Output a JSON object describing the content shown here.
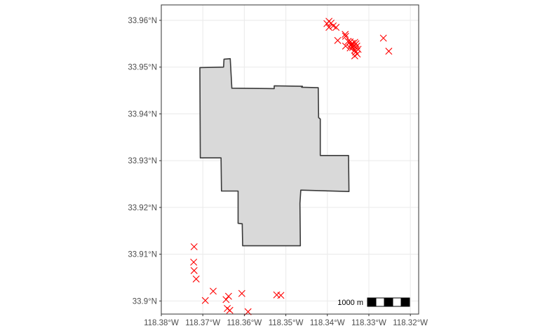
{
  "map": {
    "lon_range": [
      -118.38,
      -118.318
    ],
    "lat_range": [
      33.8972,
      33.9633
    ],
    "x_ticks": [
      {
        "value": -118.38,
        "label": "118.38°W"
      },
      {
        "value": -118.37,
        "label": "118.37°W"
      },
      {
        "value": -118.36,
        "label": "118.36°W"
      },
      {
        "value": -118.35,
        "label": "118.35°W"
      },
      {
        "value": -118.34,
        "label": "118.34°W"
      },
      {
        "value": -118.33,
        "label": "118.33°W"
      },
      {
        "value": -118.32,
        "label": "118.32°W"
      }
    ],
    "y_ticks": [
      {
        "value": 33.9,
        "label": "33.9°N"
      },
      {
        "value": 33.91,
        "label": "33.91°N"
      },
      {
        "value": 33.92,
        "label": "33.92°N"
      },
      {
        "value": 33.93,
        "label": "33.93°N"
      },
      {
        "value": 33.94,
        "label": "33.94°N"
      },
      {
        "value": 33.95,
        "label": "33.95°N"
      },
      {
        "value": 33.96,
        "label": "33.96°N"
      }
    ],
    "grid": true,
    "scale_bar": {
      "label": "1000 m",
      "segments": 4,
      "position": "bottom-right"
    },
    "colors": {
      "polygon_fill": "#d9d9d9",
      "polygon_stroke": "#3a3a3a",
      "points": "#ff0000",
      "grid": "#ebebeb",
      "panel_border": "#333333"
    },
    "boundary": [
      [
        -118.3707,
        33.9499
      ],
      [
        -118.365,
        33.95
      ],
      [
        -118.3649,
        33.9517
      ],
      [
        -118.3634,
        33.9518
      ],
      [
        -118.363,
        33.9455
      ],
      [
        -118.3528,
        33.9454
      ],
      [
        -118.3528,
        33.946
      ],
      [
        -118.346,
        33.9459
      ],
      [
        -118.3462,
        33.9457
      ],
      [
        -118.3422,
        33.9456
      ],
      [
        -118.3421,
        33.9392
      ],
      [
        -118.3417,
        33.9389
      ],
      [
        -118.3417,
        33.9311
      ],
      [
        -118.3349,
        33.9311
      ],
      [
        -118.3348,
        33.9234
      ],
      [
        -118.3464,
        33.9237
      ],
      [
        -118.3466,
        33.9209
      ],
      [
        -118.3465,
        33.9118
      ],
      [
        -118.3604,
        33.9118
      ],
      [
        -118.3605,
        33.9165
      ],
      [
        -118.3615,
        33.9166
      ],
      [
        -118.3615,
        33.9235
      ],
      [
        -118.3655,
        33.9235
      ],
      [
        -118.3656,
        33.9306
      ],
      [
        -118.3706,
        33.9306
      ]
    ],
    "points": [
      [
        -118.3401,
        33.9593
      ],
      [
        -118.3396,
        33.9598
      ],
      [
        -118.3391,
        33.9594
      ],
      [
        -118.3396,
        33.9585
      ],
      [
        -118.3386,
        33.9588
      ],
      [
        -118.3379,
        33.9585
      ],
      [
        -118.3375,
        33.9557
      ],
      [
        -118.3357,
        33.957
      ],
      [
        -118.3356,
        33.9566
      ],
      [
        -118.335,
        33.9555
      ],
      [
        -118.3345,
        33.9554
      ],
      [
        -118.3356,
        33.9545
      ],
      [
        -118.3343,
        33.9547
      ],
      [
        -118.334,
        33.9551
      ],
      [
        -118.3345,
        33.9541
      ],
      [
        -118.3337,
        33.9545
      ],
      [
        -118.3334,
        33.9553
      ],
      [
        -118.3339,
        33.9542
      ],
      [
        -118.3334,
        33.9536
      ],
      [
        -118.3331,
        33.955
      ],
      [
        -118.3329,
        33.9545
      ],
      [
        -118.3332,
        33.9532
      ],
      [
        -118.3328,
        33.9528
      ],
      [
        -118.3334,
        33.9524
      ],
      [
        -118.3326,
        33.9538
      ],
      [
        -118.3265,
        33.9562
      ],
      [
        -118.3252,
        33.9534
      ],
      [
        -118.3721,
        33.9116
      ],
      [
        -118.3722,
        33.9083
      ],
      [
        -118.3721,
        33.9065
      ],
      [
        -118.3716,
        33.9047
      ],
      [
        -118.3675,
        33.9021
      ],
      [
        -118.3694,
        33.9001
      ],
      [
        -118.3638,
        33.901
      ],
      [
        -118.3644,
        33.9003
      ],
      [
        -118.3641,
        33.8984
      ],
      [
        -118.3635,
        33.898
      ],
      [
        -118.3606,
        33.9016
      ],
      [
        -118.3591,
        33.8977
      ],
      [
        -118.3522,
        33.9013
      ],
      [
        -118.3512,
        33.9012
      ]
    ]
  }
}
